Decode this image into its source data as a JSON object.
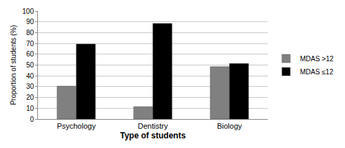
{
  "chart_data": {
    "type": "bar",
    "x_label": "Type of students",
    "y_label": "Proportion of students (%)",
    "categories": [
      "Psychology",
      "Dentistry",
      "Biology"
    ],
    "series": [
      {
        "name": "MDAS >12",
        "color": "#808080",
        "values": [
          30.5,
          11.5,
          48.5
        ]
      },
      {
        "name": "MDAS ≤12",
        "color": "#000000",
        "values": [
          69.5,
          88.5,
          51.5
        ]
      }
    ],
    "ylim": [
      0,
      100
    ],
    "yticks": [
      0,
      10,
      20,
      30,
      40,
      50,
      60,
      70,
      80,
      90,
      100
    ],
    "grid": true,
    "legend": "right"
  }
}
